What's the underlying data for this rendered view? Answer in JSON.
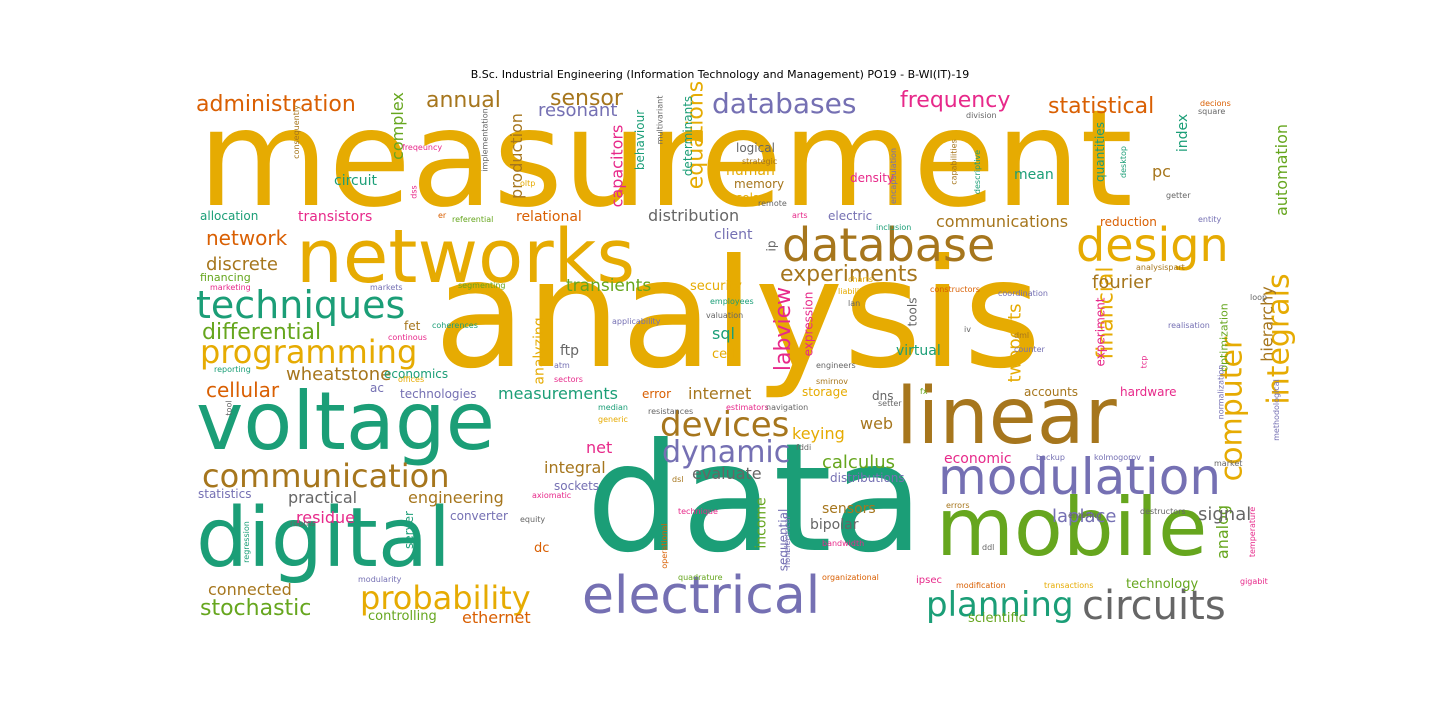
{
  "title": "B.Sc. Industrial Engineering (Information Technology and Management)  PO19 - B-WI(IT)-19",
  "colors": {
    "gold": "#e6ab02",
    "green": "#1b9e77",
    "purple": "#7570b3",
    "brown": "#a6761d",
    "orange": "#d95f02",
    "pink": "#e7298a",
    "lime": "#66a61e",
    "gray": "#666666"
  },
  "words": [
    {
      "text": "measurement"
    },
    {
      "text": "analysis"
    },
    {
      "text": "data"
    },
    {
      "text": "networks"
    },
    {
      "text": "voltage"
    },
    {
      "text": "digital"
    },
    {
      "text": "mobile"
    },
    {
      "text": "linear"
    },
    {
      "text": "electrical"
    },
    {
      "text": "database"
    },
    {
      "text": "design"
    },
    {
      "text": "modulation"
    },
    {
      "text": "techniques"
    },
    {
      "text": "communication"
    },
    {
      "text": "programming"
    },
    {
      "text": "circuits"
    },
    {
      "text": "databases"
    },
    {
      "text": "devices"
    },
    {
      "text": "planning"
    },
    {
      "text": "probability"
    },
    {
      "text": "dynamic"
    },
    {
      "text": "computer"
    },
    {
      "text": "integrals"
    },
    {
      "text": "administration"
    },
    {
      "text": "frequency"
    },
    {
      "text": "statistical"
    },
    {
      "text": "annual"
    },
    {
      "text": "sensor"
    },
    {
      "text": "resonant"
    },
    {
      "text": "experiments"
    },
    {
      "text": "differential"
    },
    {
      "text": "financial"
    },
    {
      "text": "stochastic"
    },
    {
      "text": "labview"
    },
    {
      "text": "equations"
    },
    {
      "text": "complex"
    },
    {
      "text": "network"
    },
    {
      "text": "discrete"
    },
    {
      "text": "cellular"
    },
    {
      "text": "wheatstone"
    },
    {
      "text": "calculus"
    },
    {
      "text": "twoports"
    },
    {
      "text": "fourier"
    },
    {
      "text": "automation"
    },
    {
      "text": "hierarchy"
    },
    {
      "text": "analog"
    },
    {
      "text": "signal"
    },
    {
      "text": "laplace"
    },
    {
      "text": "economic"
    },
    {
      "text": "integral"
    },
    {
      "text": "evaluate"
    },
    {
      "text": "keying"
    },
    {
      "text": "engineering"
    },
    {
      "text": "practical"
    },
    {
      "text": "residue"
    },
    {
      "text": "connected"
    },
    {
      "text": "ethernet"
    },
    {
      "text": "controlling"
    },
    {
      "text": "scientific"
    },
    {
      "text": "technology"
    },
    {
      "text": "sensors"
    },
    {
      "text": "bipolar"
    },
    {
      "text": "income"
    },
    {
      "text": "sequential"
    },
    {
      "text": "converter"
    },
    {
      "text": "sockets"
    },
    {
      "text": "server"
    },
    {
      "text": "dc"
    },
    {
      "text": "net"
    },
    {
      "text": "web"
    },
    {
      "text": "internet"
    },
    {
      "text": "measurements"
    },
    {
      "text": "transients"
    },
    {
      "text": "security"
    },
    {
      "text": "sql"
    },
    {
      "text": "cell"
    },
    {
      "text": "virtual"
    },
    {
      "text": "tools"
    },
    {
      "text": "analyzing"
    },
    {
      "text": "production"
    },
    {
      "text": "capacitors"
    },
    {
      "text": "behaviour"
    },
    {
      "text": "determinants"
    },
    {
      "text": "human"
    },
    {
      "text": "memory"
    },
    {
      "text": "solar"
    },
    {
      "text": "logical"
    },
    {
      "text": "circuit"
    },
    {
      "text": "allocation"
    },
    {
      "text": "transistors"
    },
    {
      "text": "relational"
    },
    {
      "text": "distribution"
    },
    {
      "text": "client"
    },
    {
      "text": "ip"
    },
    {
      "text": "communications"
    },
    {
      "text": "reduction"
    },
    {
      "text": "mean"
    },
    {
      "text": "pc"
    },
    {
      "text": "index"
    },
    {
      "text": "quantities"
    },
    {
      "text": "density"
    },
    {
      "text": "electric"
    },
    {
      "text": "ftp"
    },
    {
      "text": "fet"
    },
    {
      "text": "accounts"
    },
    {
      "text": "hardware"
    },
    {
      "text": "experiment"
    },
    {
      "text": "optimization"
    },
    {
      "text": "storage"
    },
    {
      "text": "dns"
    },
    {
      "text": "error"
    },
    {
      "text": "technologies"
    },
    {
      "text": "statistics"
    },
    {
      "text": "economics"
    },
    {
      "text": "ac"
    },
    {
      "text": "distributions"
    },
    {
      "text": "expression"
    },
    {
      "text": "financing"
    },
    {
      "text": "marketing"
    },
    {
      "text": "markets"
    },
    {
      "text": "segmenting"
    },
    {
      "text": "coherences"
    },
    {
      "text": "continous"
    },
    {
      "text": "reporting"
    },
    {
      "text": "offices"
    },
    {
      "text": "sectors"
    },
    {
      "text": "atm"
    },
    {
      "text": "applicability"
    },
    {
      "text": "employees"
    },
    {
      "text": "valuation"
    },
    {
      "text": "engineers"
    },
    {
      "text": "smirnov"
    },
    {
      "text": "charts"
    },
    {
      "text": "liability"
    },
    {
      "text": "lan"
    },
    {
      "text": "constructors"
    },
    {
      "text": "coordination"
    },
    {
      "text": "iv"
    },
    {
      "text": "dml"
    },
    {
      "text": "counter"
    },
    {
      "text": "realisation"
    },
    {
      "text": "analysispart"
    },
    {
      "text": "loop"
    },
    {
      "text": "entity"
    },
    {
      "text": "getter"
    },
    {
      "text": "desktop"
    },
    {
      "text": "capabilities"
    },
    {
      "text": "descriptive"
    },
    {
      "text": "encapsulation"
    },
    {
      "text": "inclusion"
    },
    {
      "text": "arts"
    },
    {
      "text": "remote"
    },
    {
      "text": "strategic"
    },
    {
      "text": "oltp"
    },
    {
      "text": "dss"
    },
    {
      "text": "freqeuncy"
    },
    {
      "text": "consequently"
    },
    {
      "text": "implementation"
    },
    {
      "text": "multivariant"
    },
    {
      "text": "division"
    },
    {
      "text": "decions"
    },
    {
      "text": "square"
    },
    {
      "text": "referential"
    },
    {
      "text": "er"
    },
    {
      "text": "generic"
    },
    {
      "text": "median"
    },
    {
      "text": "resistances"
    },
    {
      "text": "estimators"
    },
    {
      "text": "navigation"
    },
    {
      "text": "fddi"
    },
    {
      "text": "setter"
    },
    {
      "text": "fx"
    },
    {
      "text": "tcp"
    },
    {
      "text": "methodological"
    },
    {
      "text": "market"
    },
    {
      "text": "kolmogorov"
    },
    {
      "text": "backup"
    },
    {
      "text": "dsl"
    },
    {
      "text": "axiomatic"
    },
    {
      "text": "regression"
    },
    {
      "text": "rdbms"
    },
    {
      "text": "equity"
    },
    {
      "text": "technique"
    },
    {
      "text": "nonelectrical"
    },
    {
      "text": "operational"
    },
    {
      "text": "bandwidth"
    },
    {
      "text": "errors"
    },
    {
      "text": "entering"
    },
    {
      "text": "destructors"
    },
    {
      "text": "ddl"
    },
    {
      "text": "temperature"
    },
    {
      "text": "gigabit"
    },
    {
      "text": "modularity"
    },
    {
      "text": "quadrature"
    },
    {
      "text": "organizational"
    },
    {
      "text": "ipsec"
    },
    {
      "text": "modification"
    },
    {
      "text": "transactions"
    },
    {
      "text": "normalization"
    },
    {
      "text": "tool"
    }
  ]
}
